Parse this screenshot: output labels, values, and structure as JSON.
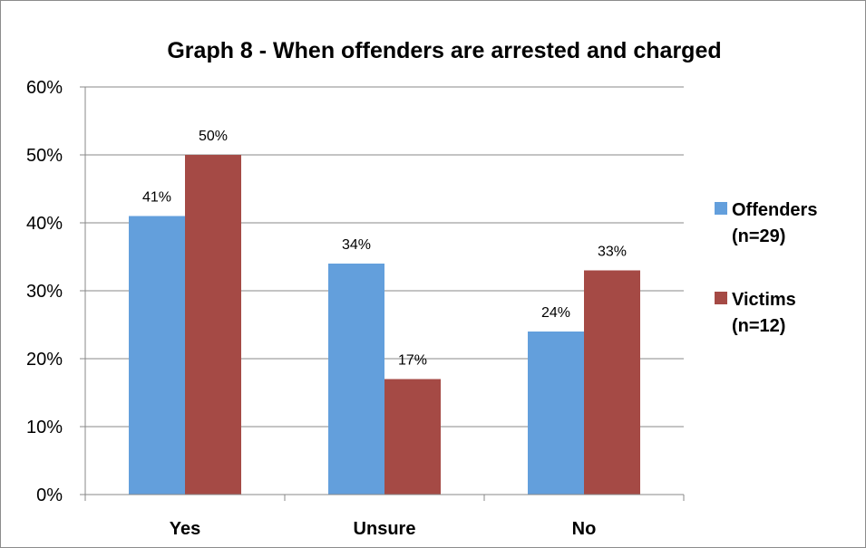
{
  "chart_data": {
    "type": "bar",
    "title": "Graph 8 - When offenders are arrested and charged",
    "xlabel": "",
    "ylabel": "",
    "categories": [
      "Yes",
      "Unsure",
      "No"
    ],
    "series": [
      {
        "name_lines": [
          "Offenders",
          "(n=29)"
        ],
        "color": "#639fdc",
        "values": [
          41,
          34,
          24
        ],
        "labels": [
          "41%",
          "34%",
          "24%"
        ]
      },
      {
        "name_lines": [
          "Victims",
          "(n=12)"
        ],
        "color": "#a54a45",
        "values": [
          50,
          17,
          33
        ],
        "labels": [
          "50%",
          "17%",
          "33%"
        ]
      }
    ],
    "ylim": [
      0,
      60
    ],
    "yticks": [
      0,
      10,
      20,
      30,
      40,
      50,
      60
    ],
    "ytick_labels": [
      "0%",
      "10%",
      "20%",
      "30%",
      "40%",
      "50%",
      "60%"
    ],
    "grid": true,
    "legend_position": "right"
  }
}
